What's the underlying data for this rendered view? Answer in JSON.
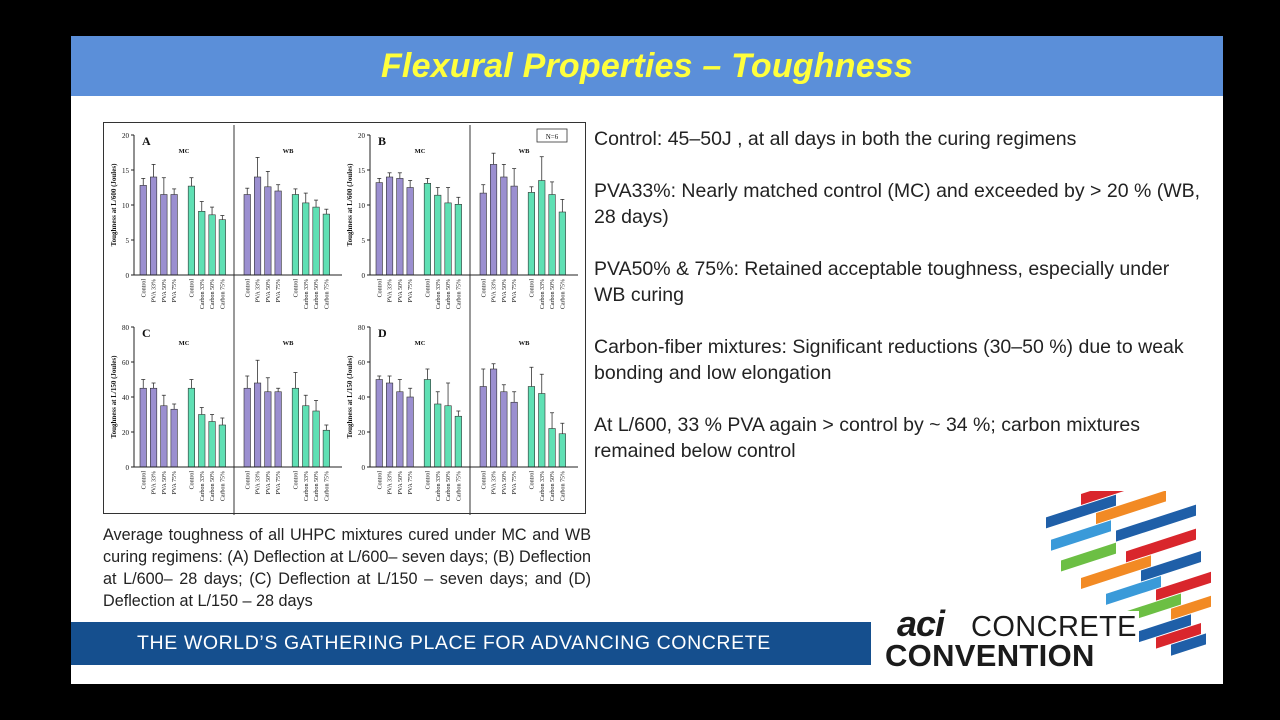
{
  "slide": {
    "title": "Flexural Properties – Toughness",
    "tagline": "THE WORLD’S GATHERING PLACE FOR ADVANCING CONCRETE",
    "caption": "Average toughness of all UHPC mixtures cured under MC and WB curing regimens: (A) Deflection at L/600– seven days; (B) Deflection at L/600– 28 days; (C) Deflection at L/150 – seven days; and (D) Deflection at L/150 – 28 days",
    "bullets": [
      "Control: 45–50J , at all days in both the curing regimens",
      "PVA33%: Nearly matched control (MC) and exceeded by > 20 % (WB, 28 days)",
      "PVA50% & 75%: Retained acceptable toughness, especially under WB curing",
      "Carbon-fiber mixtures: Significant reductions (30–50 %) due to weak bonding and low elongation",
      "At L/600, 33 % PVA again > control by ~ 34 %; carbon mixtures remained below control"
    ],
    "logo": {
      "aci": "aci",
      "concrete": "CONCRETE",
      "convention": "CONVENTION"
    }
  },
  "colors": {
    "title_bar": "#5b8fd9",
    "title_text": "#ffff3c",
    "tagline_bar": "#154f8e",
    "pva_bar": "#9b8fd0",
    "carbon_bar": "#5fe0b4"
  },
  "figure_note": "N=6",
  "chart_data": [
    {
      "type": "bar",
      "panel": "A",
      "ylabel": "Toughness at L/600 (Joules)",
      "ylim": [
        0,
        20
      ],
      "yticks": [
        0,
        5,
        10,
        15,
        20
      ],
      "groups": [
        "MC",
        "WB"
      ],
      "categories": [
        "Control",
        "PVA 33%",
        "PVA 50%",
        "PVA 75%",
        "Control",
        "Carbon 33%",
        "Carbon 50%",
        "Carbon 75%"
      ],
      "series": [
        {
          "name": "MC",
          "values": [
            12.8,
            14.0,
            11.5,
            11.5,
            12.7,
            9.1,
            8.6,
            7.9
          ],
          "errors": [
            1.0,
            1.8,
            2.4,
            0.8,
            1.2,
            1.4,
            1.1,
            0.6
          ]
        },
        {
          "name": "WB",
          "values": [
            11.5,
            14.0,
            12.6,
            12.0,
            11.5,
            10.3,
            9.7,
            8.7
          ],
          "errors": [
            0.9,
            2.8,
            2.2,
            0.9,
            0.8,
            1.4,
            1.0,
            0.7
          ]
        }
      ]
    },
    {
      "type": "bar",
      "panel": "B",
      "ylabel": "Toughness at L/600 (Joules)",
      "ylim": [
        0,
        20
      ],
      "yticks": [
        0,
        5,
        10,
        15,
        20
      ],
      "groups": [
        "MC",
        "WB"
      ],
      "categories": [
        "Control",
        "PVA 33%",
        "PVA 50%",
        "PVA 75%",
        "Control",
        "Carbon 33%",
        "Carbon 50%",
        "Carbon 75%"
      ],
      "series": [
        {
          "name": "MC",
          "values": [
            13.2,
            14.0,
            13.8,
            12.5,
            13.1,
            11.4,
            10.3,
            10.1
          ],
          "errors": [
            0.6,
            0.6,
            0.8,
            1.0,
            0.7,
            1.1,
            2.2,
            1.0
          ]
        },
        {
          "name": "WB",
          "values": [
            11.7,
            15.8,
            14.0,
            12.7,
            11.8,
            13.5,
            11.5,
            9.0
          ],
          "errors": [
            1.2,
            1.6,
            1.8,
            2.5,
            0.8,
            3.4,
            1.8,
            1.8
          ]
        }
      ]
    },
    {
      "type": "bar",
      "panel": "C",
      "ylabel": "Toughness at L/150 (Joules)",
      "ylim": [
        0,
        80
      ],
      "yticks": [
        0,
        20,
        40,
        60,
        80
      ],
      "groups": [
        "MC",
        "WB"
      ],
      "categories": [
        "Control",
        "PVA 33%",
        "PVA 50%",
        "PVA 75%",
        "Control",
        "Carbon 33%",
        "Carbon 50%",
        "Carbon 75%"
      ],
      "series": [
        {
          "name": "MC",
          "values": [
            45,
            45,
            35,
            33,
            45,
            30,
            26,
            24
          ],
          "errors": [
            5,
            3,
            6,
            3,
            5,
            4,
            4,
            4
          ]
        },
        {
          "name": "WB",
          "values": [
            45,
            48,
            43,
            43,
            45,
            35,
            32,
            21
          ],
          "errors": [
            7,
            13,
            8,
            2,
            9,
            6,
            6,
            3
          ]
        }
      ]
    },
    {
      "type": "bar",
      "panel": "D",
      "ylabel": "Toughness at L/150 (Joules)",
      "ylim": [
        0,
        80
      ],
      "yticks": [
        0,
        20,
        40,
        60,
        80
      ],
      "groups": [
        "MC",
        "WB"
      ],
      "categories": [
        "Control",
        "PVA 33%",
        "PVA 50%",
        "PVA 75%",
        "Control",
        "Carbon 33%",
        "Carbon 50%",
        "Carbon 75%"
      ],
      "series": [
        {
          "name": "MC",
          "values": [
            50,
            48,
            43,
            40,
            50,
            36,
            35,
            29
          ],
          "errors": [
            2,
            4,
            7,
            5,
            6,
            7,
            13,
            3
          ]
        },
        {
          "name": "WB",
          "values": [
            46,
            56,
            43,
            37,
            46,
            42,
            22,
            19
          ],
          "errors": [
            10,
            3,
            4,
            6,
            11,
            11,
            9,
            6
          ]
        }
      ]
    }
  ]
}
